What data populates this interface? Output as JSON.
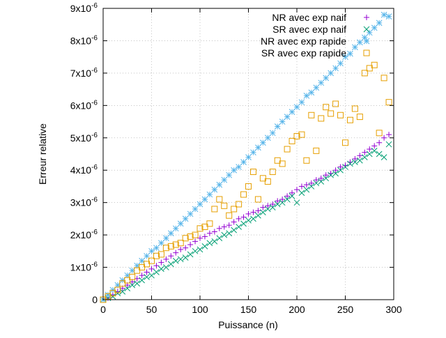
{
  "chart_data": {
    "type": "scatter",
    "xlabel": "Puissance (n)",
    "ylabel": "Erreur relative",
    "xlim": [
      0,
      300
    ],
    "ylim": [
      0,
      9e-06
    ],
    "grid": true,
    "legend_position": "top-right",
    "x_ticks": [
      {
        "value": 0,
        "label": "0"
      },
      {
        "value": 50,
        "label": "50"
      },
      {
        "value": 100,
        "label": "100"
      },
      {
        "value": 150,
        "label": "150"
      },
      {
        "value": 200,
        "label": "200"
      },
      {
        "value": 250,
        "label": "250"
      },
      {
        "value": 300,
        "label": "300"
      }
    ],
    "y_ticks": [
      {
        "value": 0,
        "base": "0",
        "exp": ""
      },
      {
        "value": 1e-06,
        "base": "1x10",
        "exp": "-6"
      },
      {
        "value": 2e-06,
        "base": "2x10",
        "exp": "-6"
      },
      {
        "value": 3e-06,
        "base": "3x10",
        "exp": "-6"
      },
      {
        "value": 4e-06,
        "base": "4x10",
        "exp": "-6"
      },
      {
        "value": 5e-06,
        "base": "5x10",
        "exp": "-6"
      },
      {
        "value": 6e-06,
        "base": "6x10",
        "exp": "-6"
      },
      {
        "value": 7e-06,
        "base": "7x10",
        "exp": "-6"
      },
      {
        "value": 8e-06,
        "base": "8x10",
        "exp": "-6"
      },
      {
        "value": 9e-06,
        "base": "9x10",
        "exp": "-6"
      }
    ],
    "series": [
      {
        "name": "NR avec exp naif",
        "marker": "plus",
        "color": "#9400d3",
        "x": [
          0,
          5,
          10,
          15,
          20,
          25,
          30,
          35,
          40,
          45,
          50,
          55,
          60,
          65,
          70,
          75,
          80,
          85,
          90,
          95,
          100,
          105,
          110,
          115,
          120,
          125,
          130,
          135,
          140,
          145,
          150,
          155,
          160,
          165,
          170,
          175,
          180,
          185,
          190,
          195,
          200,
          205,
          210,
          215,
          220,
          225,
          230,
          235,
          240,
          245,
          250,
          255,
          260,
          265,
          270,
          275,
          280,
          285,
          290,
          295
        ],
        "y": [
          0,
          5e-08,
          1.5e-07,
          2.5e-07,
          3.5e-07,
          4.5e-07,
          5.5e-07,
          6.5e-07,
          7.5e-07,
          8.5e-07,
          9.5e-07,
          1.05e-06,
          1.15e-06,
          1.25e-06,
          1.35e-06,
          1.45e-06,
          1.55e-06,
          1.6e-06,
          1.7e-06,
          1.8e-06,
          1.9e-06,
          1.95e-06,
          2.05e-06,
          2.1e-06,
          2.2e-06,
          2.25e-06,
          2.3e-06,
          2.4e-06,
          2.5e-06,
          2.55e-06,
          2.65e-06,
          2.7e-06,
          2.75e-06,
          2.85e-06,
          2.9e-06,
          2.95e-06,
          3.05e-06,
          3.1e-06,
          3.2e-06,
          3.3e-06,
          3.4e-06,
          3.5e-06,
          3.55e-06,
          3.6e-06,
          3.7e-06,
          3.75e-06,
          3.85e-06,
          3.9e-06,
          4e-06,
          4.1e-06,
          4.15e-06,
          4.25e-06,
          4.35e-06,
          4.45e-06,
          4.55e-06,
          4.65e-06,
          4.75e-06,
          4.85e-06,
          5e-06,
          5.1e-06
        ]
      },
      {
        "name": "SR avec exp naif",
        "marker": "x",
        "color": "#009e73",
        "x": [
          0,
          5,
          10,
          15,
          20,
          25,
          30,
          35,
          40,
          45,
          50,
          55,
          60,
          65,
          70,
          75,
          80,
          85,
          90,
          95,
          100,
          105,
          110,
          115,
          120,
          125,
          130,
          135,
          140,
          145,
          150,
          155,
          160,
          165,
          170,
          175,
          180,
          185,
          190,
          195,
          200,
          205,
          210,
          215,
          220,
          225,
          230,
          235,
          240,
          245,
          250,
          255,
          260,
          265,
          270,
          275,
          280,
          285,
          290,
          295
        ],
        "y": [
          0,
          5e-08,
          1e-07,
          2e-07,
          2.5e-07,
          3.5e-07,
          4.5e-07,
          5e-07,
          6e-07,
          7e-07,
          7.5e-07,
          8.5e-07,
          9.5e-07,
          1e-06,
          1.1e-06,
          1.2e-06,
          1.25e-06,
          1.3e-06,
          1.4e-06,
          1.5e-06,
          1.55e-06,
          1.65e-06,
          1.75e-06,
          1.8e-06,
          1.9e-06,
          2e-06,
          2.05e-06,
          2.15e-06,
          2.25e-06,
          2.35e-06,
          2.45e-06,
          2.5e-06,
          2.6e-06,
          2.7e-06,
          2.8e-06,
          2.85e-06,
          2.95e-06,
          3e-06,
          3.1e-06,
          3.2e-06,
          3e-06,
          3.3e-06,
          3.4e-06,
          3.5e-06,
          3.6e-06,
          3.65e-06,
          3.75e-06,
          3.85e-06,
          3.9e-06,
          4e-06,
          4.1e-06,
          4.2e-06,
          4.25e-06,
          4.3e-06,
          4.4e-06,
          4.5e-06,
          4.6e-06,
          4.5e-06,
          4.4e-06,
          4.8e-06
        ]
      },
      {
        "name": "NR avec exp rapide",
        "marker": "star",
        "color": "#56b4e9",
        "x": [
          0,
          5,
          10,
          15,
          20,
          25,
          30,
          35,
          40,
          45,
          50,
          55,
          60,
          65,
          70,
          75,
          80,
          85,
          90,
          95,
          100,
          105,
          110,
          115,
          120,
          125,
          130,
          135,
          140,
          145,
          150,
          155,
          160,
          165,
          170,
          175,
          180,
          185,
          190,
          195,
          200,
          205,
          210,
          215,
          220,
          225,
          230,
          235,
          240,
          245,
          250,
          255,
          260,
          265,
          270,
          275,
          280,
          285,
          290,
          295
        ],
        "y": [
          0,
          1.5e-07,
          3e-07,
          4.5e-07,
          6e-07,
          7.5e-07,
          9e-07,
          1.05e-06,
          1.2e-06,
          1.35e-06,
          1.5e-06,
          1.6e-06,
          1.75e-06,
          1.9e-06,
          2.05e-06,
          2.2e-06,
          2.35e-06,
          2.5e-06,
          2.65e-06,
          2.8e-06,
          2.95e-06,
          3.1e-06,
          3.25e-06,
          3.4e-06,
          3.55e-06,
          3.7e-06,
          3.85e-06,
          4e-06,
          4.1e-06,
          4.25e-06,
          4.4e-06,
          4.55e-06,
          4.7e-06,
          4.85e-06,
          5e-06,
          5.15e-06,
          5.35e-06,
          5.5e-06,
          5.65e-06,
          5.8e-06,
          5.95e-06,
          6.1e-06,
          6.3e-06,
          6.4e-06,
          6.55e-06,
          6.7e-06,
          6.85e-06,
          7e-06,
          7.15e-06,
          7.3e-06,
          7.5e-06,
          7.6e-06,
          7.8e-06,
          7.95e-06,
          8.1e-06,
          8.25e-06,
          8.4e-06,
          8.55e-06,
          8.8e-06,
          8.75e-06
        ]
      },
      {
        "name": "SR avec exp rapide",
        "marker": "square",
        "color": "#e69f00",
        "x": [
          0,
          5,
          10,
          15,
          20,
          25,
          30,
          35,
          40,
          45,
          50,
          55,
          60,
          65,
          70,
          75,
          80,
          85,
          90,
          95,
          100,
          105,
          110,
          115,
          120,
          125,
          130,
          135,
          140,
          145,
          150,
          155,
          160,
          165,
          170,
          175,
          180,
          185,
          190,
          195,
          200,
          205,
          210,
          215,
          220,
          225,
          230,
          235,
          240,
          245,
          250,
          255,
          260,
          265,
          270,
          275,
          280,
          285,
          290,
          295
        ],
        "y": [
          0,
          1e-07,
          2e-07,
          3e-07,
          5e-07,
          6e-07,
          7e-07,
          9e-07,
          1e-06,
          1.1e-06,
          1.2e-06,
          1.35e-06,
          1.4e-06,
          1.6e-06,
          1.65e-06,
          1.7e-06,
          1.75e-06,
          1.9e-06,
          1.95e-06,
          2e-06,
          2.2e-06,
          2.25e-06,
          2.35e-06,
          2.8e-06,
          3.1e-06,
          2.9e-06,
          2.6e-06,
          2.8e-06,
          2.95e-06,
          3.25e-06,
          3.5e-06,
          3.95e-06,
          3.1e-06,
          3.75e-06,
          3.65e-06,
          3.95e-06,
          4.3e-06,
          4.2e-06,
          4.65e-06,
          4.9e-06,
          5.05e-06,
          5.1e-06,
          4.3e-06,
          5.7e-06,
          4.6e-06,
          5.6e-06,
          5.95e-06,
          5.75e-06,
          6.05e-06,
          5.7e-06,
          4.85e-06,
          5.55e-06,
          5.9e-06,
          5.65e-06,
          7e-06,
          7.15e-06,
          7.25e-06,
          5.15e-06,
          6.85e-06,
          6.1e-06
        ]
      }
    ]
  }
}
